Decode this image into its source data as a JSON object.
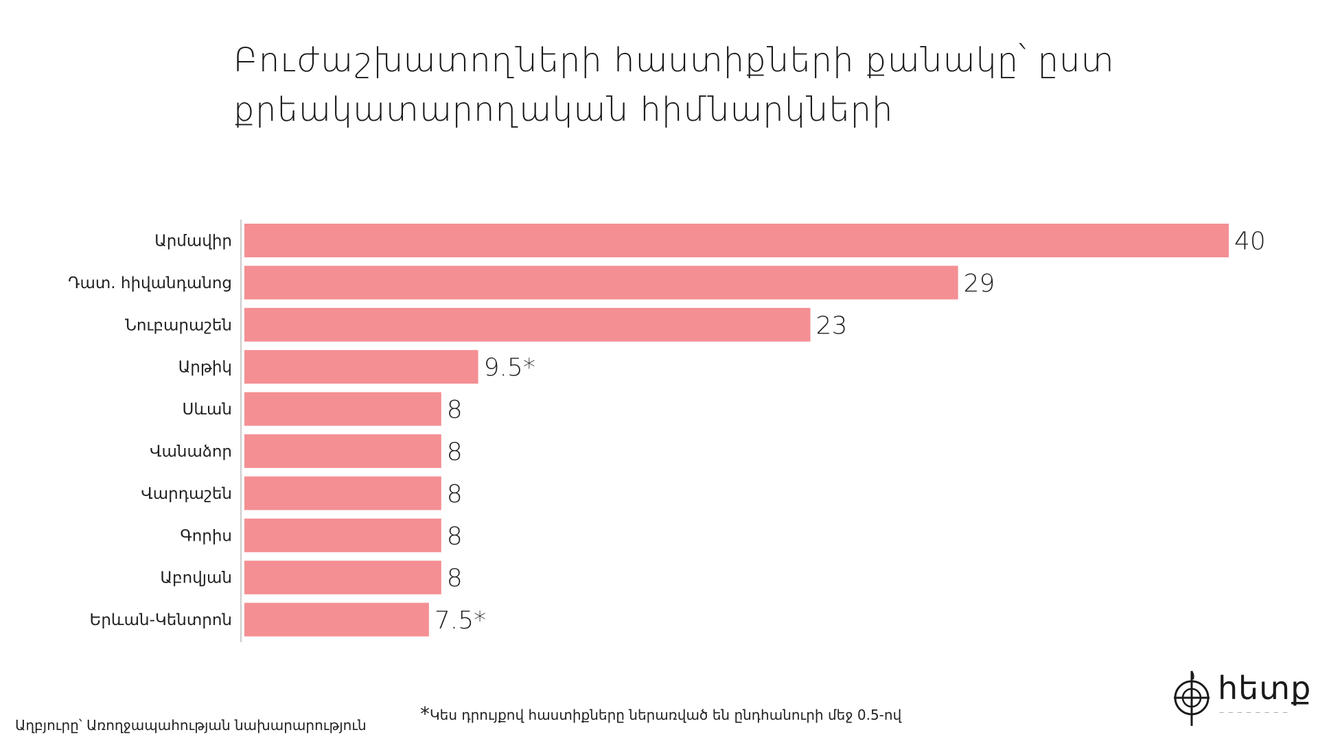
{
  "chart_data": {
    "type": "bar",
    "orientation": "horizontal",
    "title": "Բուժաշխատողների հաստիքների քանակը՝ ըստ քրեակատարողական հիմնարկների",
    "title_lines": [
      "Բուժաշխատողների հաստիքների քանակը՝ ըստ",
      "քրեակատարողական հիմնարկների"
    ],
    "categories": [
      "Արմավիր",
      "Դատ. հիվանդանոց",
      "Նուբարաշեն",
      "Արթիկ",
      "Սևան",
      "Վանաձոր",
      "Վարդաշեն",
      "Գորիս",
      "Աբովյան",
      "Երևան-Կենտրոն"
    ],
    "values": [
      40,
      29,
      23,
      9.5,
      8,
      8,
      8,
      8,
      8,
      7.5
    ],
    "value_labels": [
      "40",
      "29",
      "23",
      "9.5*",
      "8",
      "8",
      "8",
      "8",
      "8",
      "7.5*"
    ],
    "xlim": [
      0,
      40
    ],
    "grid": false,
    "bar_color": "#f48f93",
    "axis_color": "#cccccc"
  },
  "footer": {
    "source": "Աղբյուրը՝ Առողջապահության նախարարություն",
    "note_marker": "*",
    "note": "Կես դրույքով հաստիքները ներառված են ընդհանուրի մեջ 0.5-ով"
  },
  "logo": {
    "text": "hետք",
    "icon": "compass-logo-icon"
  }
}
